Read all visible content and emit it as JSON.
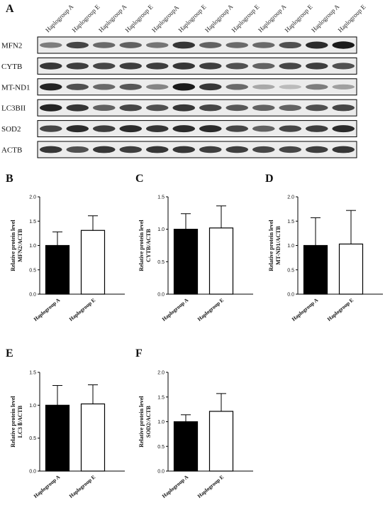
{
  "blot": {
    "panel_letter": "A",
    "lanes": [
      "Haplogroup A",
      "Haplogroup E",
      "Haplogroup A",
      "Haplogroup E",
      "HaplogroupA",
      "Haplogroup E",
      "Haplogroup A",
      "Haplogroup E",
      "Haplogroup A",
      "Haplogroup E",
      "Haplogroup A",
      "Haplogroup E"
    ],
    "bands": [
      {
        "name": "MFN2",
        "intensity": [
          0.45,
          0.75,
          0.55,
          0.6,
          0.5,
          0.85,
          0.6,
          0.55,
          0.55,
          0.7,
          0.9,
          1.0
        ]
      },
      {
        "name": "CYTB",
        "intensity": [
          0.85,
          0.8,
          0.75,
          0.8,
          0.8,
          0.85,
          0.8,
          0.7,
          0.6,
          0.75,
          0.8,
          0.7
        ]
      },
      {
        "name": "MT-ND1",
        "intensity": [
          0.95,
          0.7,
          0.55,
          0.65,
          0.4,
          1.0,
          0.85,
          0.55,
          0.2,
          0.1,
          0.45,
          0.25
        ]
      },
      {
        "name": "LC3BII",
        "intensity": [
          0.95,
          0.85,
          0.6,
          0.75,
          0.7,
          0.85,
          0.75,
          0.65,
          0.6,
          0.6,
          0.7,
          0.75
        ]
      },
      {
        "name": "SOD2",
        "intensity": [
          0.75,
          0.9,
          0.8,
          0.9,
          0.85,
          0.9,
          0.9,
          0.75,
          0.6,
          0.75,
          0.8,
          0.9
        ]
      },
      {
        "name": "ACTB",
        "intensity": [
          0.85,
          0.7,
          0.85,
          0.8,
          0.85,
          0.85,
          0.8,
          0.8,
          0.75,
          0.75,
          0.8,
          0.85
        ]
      }
    ]
  },
  "chart_data": [
    {
      "panel": "B",
      "type": "bar",
      "categories": [
        "Haplogroup A",
        "Haplogroup E"
      ],
      "values": [
        1.0,
        1.31
      ],
      "errors": [
        0.28,
        0.3
      ],
      "ylabel": [
        "Relative protein level",
        "MFN2/ACTB"
      ],
      "ylim": [
        0,
        2.0
      ],
      "yticks": [
        "0.0",
        "0.5",
        "1.0",
        "1.5",
        "2.0"
      ]
    },
    {
      "panel": "C",
      "type": "bar",
      "categories": [
        "Haplogroup A",
        "Haplogroup E"
      ],
      "values": [
        1.0,
        1.02
      ],
      "errors": [
        0.24,
        0.34
      ],
      "ylabel": [
        "Relative protein level",
        "CYTB/ACTB"
      ],
      "ylim": [
        0,
        1.5
      ],
      "yticks": [
        "0.0",
        "0.5",
        "1.0",
        "1.5"
      ]
    },
    {
      "panel": "D",
      "type": "bar",
      "categories": [
        "Haplogroup A",
        "Haplogroup E"
      ],
      "values": [
        1.0,
        1.03
      ],
      "errors": [
        0.57,
        0.69
      ],
      "ylabel": [
        "Relative protein level",
        "MT-ND1/ACTB"
      ],
      "ylim": [
        0,
        2.0
      ],
      "yticks": [
        "0.0",
        "0.5",
        "1.0",
        "1.5",
        "2.0"
      ]
    },
    {
      "panel": "E",
      "type": "bar",
      "categories": [
        "Haplogroup A",
        "Haplogroup E"
      ],
      "values": [
        1.0,
        1.02
      ],
      "errors": [
        0.3,
        0.29
      ],
      "ylabel": [
        "Relative protein level",
        "LC3 Ⅱ/ACTB"
      ],
      "ylim": [
        0,
        1.5
      ],
      "yticks": [
        "0.0",
        "0.5",
        "1.0",
        "1.5"
      ]
    },
    {
      "panel": "F",
      "type": "bar",
      "categories": [
        "Haplogroup A",
        "Haplogroup E"
      ],
      "values": [
        1.0,
        1.21
      ],
      "errors": [
        0.14,
        0.36
      ],
      "ylabel": [
        "Relative protein level",
        "SOD2/ACTB"
      ],
      "ylim": [
        0,
        2.0
      ],
      "yticks": [
        "0.0",
        "0.5",
        "1.0",
        "1.5",
        "2.0"
      ]
    }
  ],
  "colors": {
    "bar_fills": [
      "#000000",
      "#ffffff"
    ],
    "stroke": "#000000",
    "band": "#1a1a1a",
    "blot_bg": "#ececec"
  }
}
